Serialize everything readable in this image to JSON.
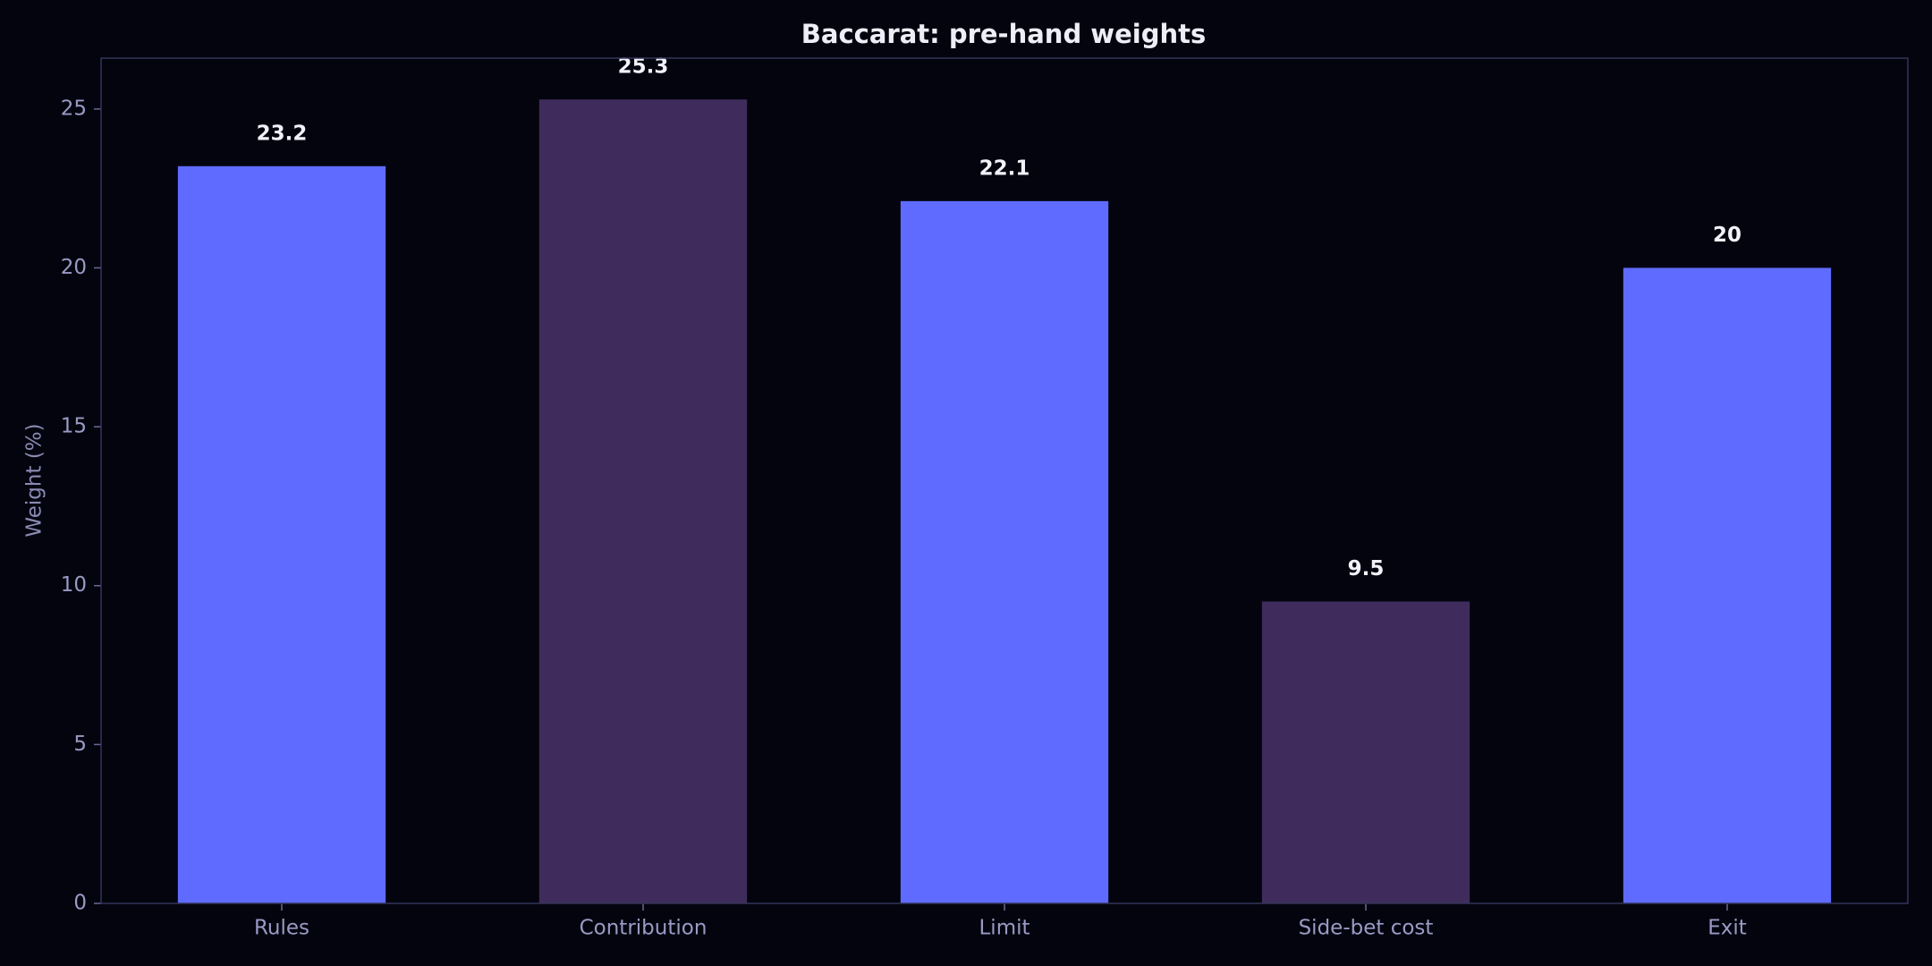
{
  "chart_data": {
    "type": "bar",
    "title": "Baccarat: pre-hand weights",
    "y_label": "Weight (%)",
    "categories": [
      "Rules",
      "Contribution",
      "Limit",
      "Side-bet cost",
      "Exit"
    ],
    "values": [
      23.2,
      25.3,
      22.1,
      9.5,
      20
    ],
    "colors": [
      "#5f6bff",
      "#402c5c",
      "#5f6bff",
      "#402c5c",
      "#5f6bff"
    ],
    "ylim": [
      0,
      26.6
    ],
    "yticks": [
      0,
      5,
      10,
      15,
      20,
      25
    ],
    "grid": false
  }
}
